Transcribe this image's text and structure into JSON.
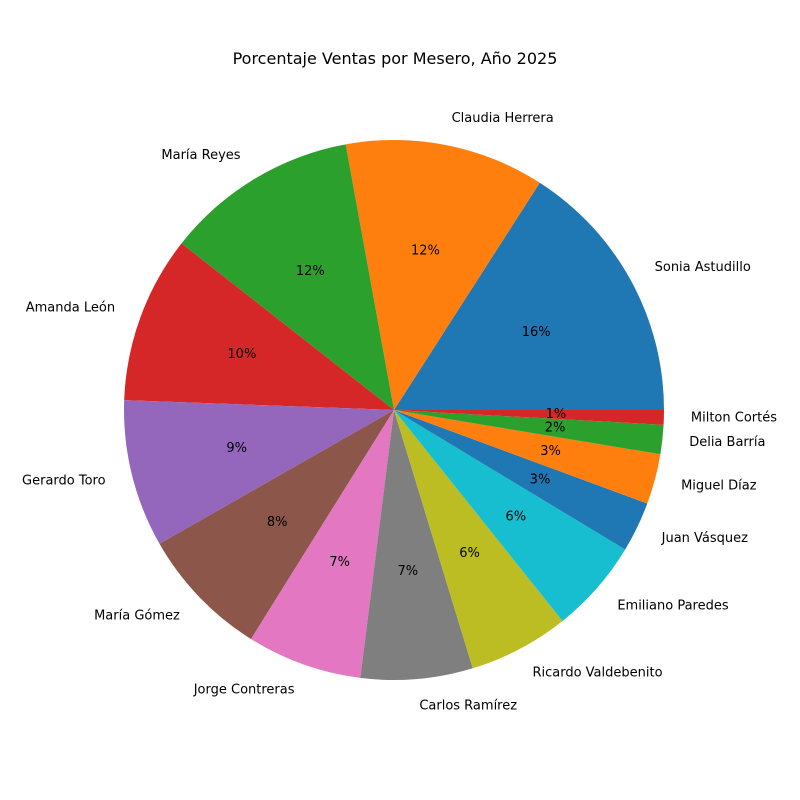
{
  "chart_data": {
    "type": "pie",
    "title": "Porcentaje Ventas por Mesero, Año 2025",
    "start_angle_deg": 0,
    "direction": "counterclockwise",
    "slices": [
      {
        "label": "Sonia Astudillo",
        "value": 16.4,
        "pct_text": "16%",
        "color": "#1f77b4"
      },
      {
        "label": "Claudia Herrera",
        "value": 12.3,
        "pct_text": "12%",
        "color": "#ff7f0e"
      },
      {
        "label": "María Reyes",
        "value": 11.9,
        "pct_text": "12%",
        "color": "#2ca02c"
      },
      {
        "label": "Amanda León",
        "value": 10.3,
        "pct_text": "10%",
        "color": "#d62728"
      },
      {
        "label": "Gerardo Toro",
        "value": 9.1,
        "pct_text": "9%",
        "color": "#9467bd"
      },
      {
        "label": "María Gómez",
        "value": 8.1,
        "pct_text": "8%",
        "color": "#8c564b"
      },
      {
        "label": "Jorge Contreras",
        "value": 7.1,
        "pct_text": "7%",
        "color": "#e377c2"
      },
      {
        "label": "Carlos Ramírez",
        "value": 6.9,
        "pct_text": "7%",
        "color": "#7f7f7f"
      },
      {
        "label": "Ricardo Valdebenito",
        "value": 6.2,
        "pct_text": "6%",
        "color": "#bcbd22"
      },
      {
        "label": "Emiliano Paredes",
        "value": 5.8,
        "pct_text": "6%",
        "color": "#17becf"
      },
      {
        "label": "Juan Vásquez",
        "value": 3.1,
        "pct_text": "3%",
        "color": "#1f77b4"
      },
      {
        "label": "Miguel Díaz",
        "value": 3.1,
        "pct_text": "3%",
        "color": "#ff7f0e"
      },
      {
        "label": "Delia Barría",
        "value": 1.8,
        "pct_text": "2%",
        "color": "#2ca02c"
      },
      {
        "label": "Milton Cortés",
        "value": 0.9,
        "pct_text": "1%",
        "color": "#d62728"
      }
    ]
  }
}
